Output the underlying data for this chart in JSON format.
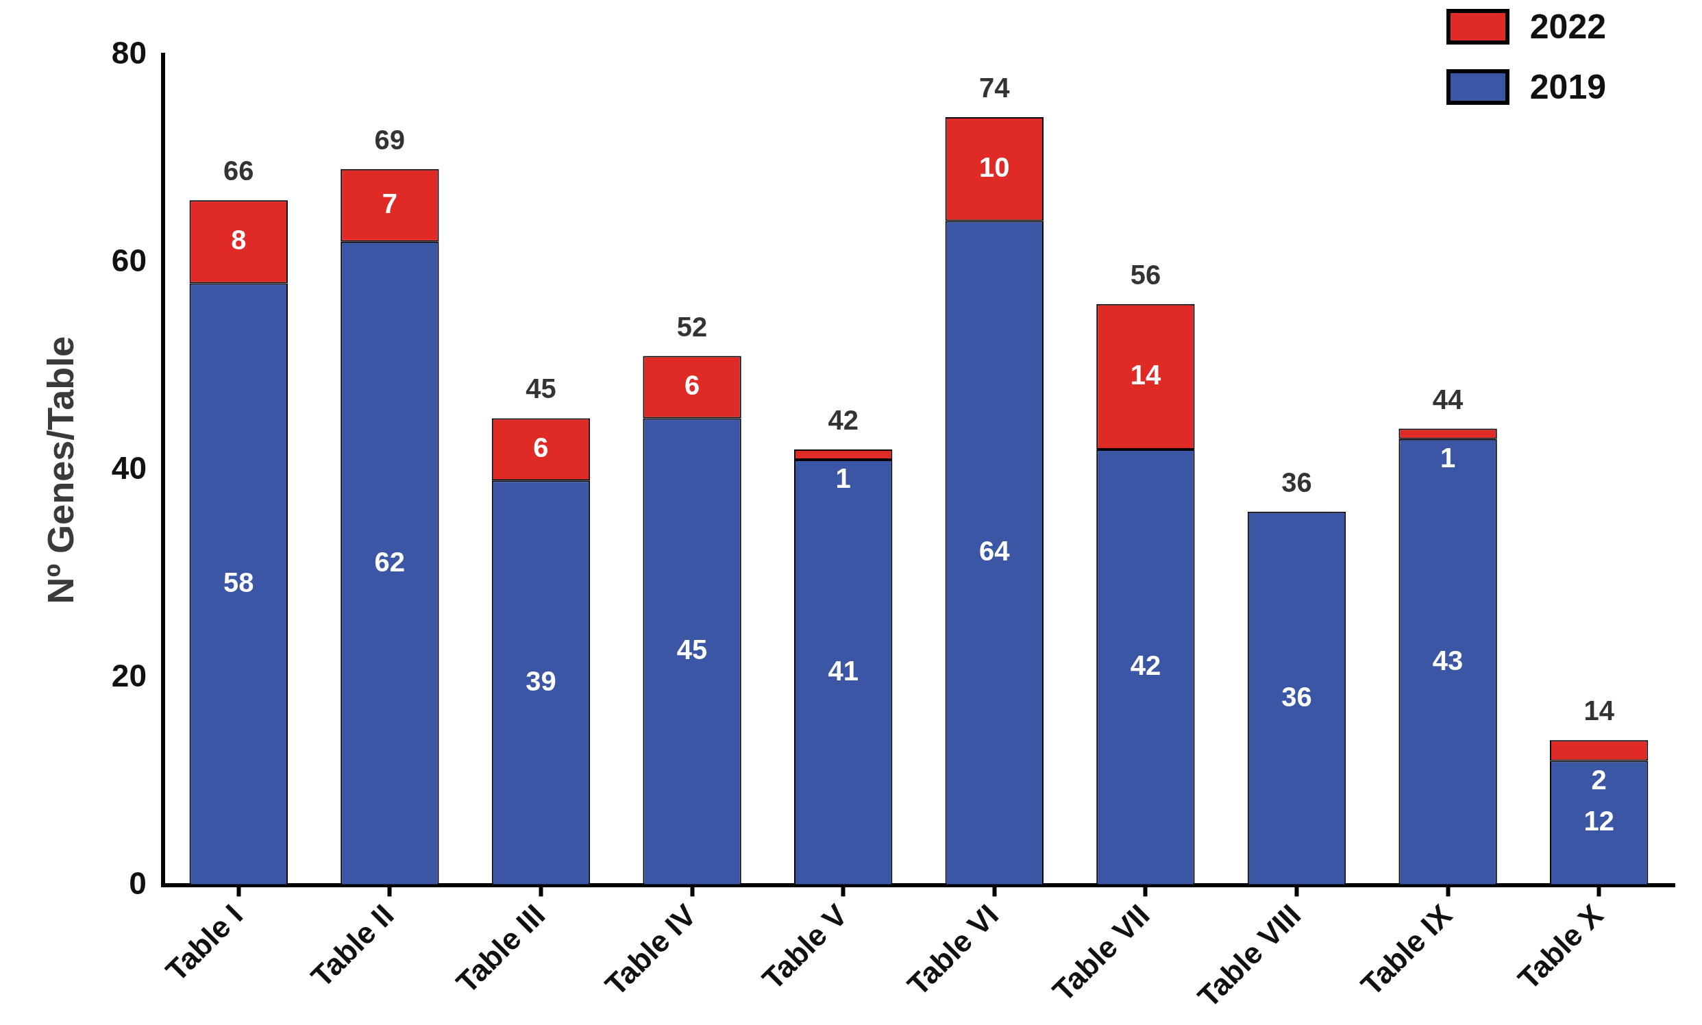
{
  "chart_data": {
    "type": "bar",
    "stacked": true,
    "ylabel": "Nº Genes/Table",
    "categories": [
      "Table I",
      "Table II",
      "Table III",
      "Table IV",
      "Table V",
      "Table VI",
      "Table VII",
      "Table VIII",
      "Table IX",
      "Table X"
    ],
    "series": [
      {
        "name": "2019",
        "color": "#3b56a4",
        "values": [
          58,
          62,
          39,
          45,
          41,
          64,
          42,
          36,
          43,
          12
        ]
      },
      {
        "name": "2022",
        "color": "#e02a26",
        "values": [
          8,
          7,
          6,
          6,
          1,
          10,
          14,
          null,
          1,
          2
        ]
      }
    ],
    "totals": [
      "66",
      "69",
      "45",
      "52",
      "42",
      "74",
      "56",
      "36",
      "44",
      "14"
    ],
    "data_labels": true,
    "ylim": [
      0,
      80
    ],
    "yticks": [
      0,
      20,
      40,
      60,
      80
    ],
    "grid": false,
    "legend": "top right"
  }
}
